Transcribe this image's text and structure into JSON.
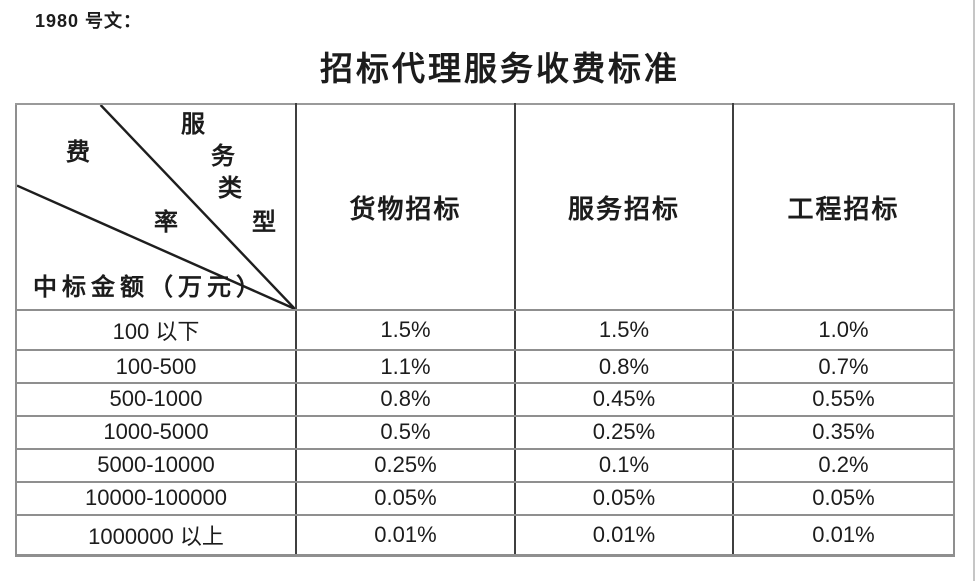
{
  "page": {
    "ref_label": "1980 号文：",
    "title": "招标代理服务收费标准"
  },
  "table": {
    "corner": {
      "fee_rate_label": "费率",
      "service_type_label": "服务类型",
      "fee_rate_chars": [
        "费",
        "率"
      ],
      "service_type_chars": [
        "服",
        "务",
        "类",
        "型"
      ],
      "amount_label": "中标金额（万元）"
    },
    "columns": [
      "货物招标",
      "服务招标",
      "工程招标"
    ],
    "rows": [
      {
        "range": "100 以下",
        "values": [
          "1.5%",
          "1.5%",
          "1.0%"
        ]
      },
      {
        "range": "100-500",
        "values": [
          "1.1%",
          "0.8%",
          "0.7%"
        ]
      },
      {
        "range": "500-1000",
        "values": [
          "0.8%",
          "0.45%",
          "0.55%"
        ]
      },
      {
        "range": "1000-5000",
        "values": [
          "0.5%",
          "0.25%",
          "0.35%"
        ]
      },
      {
        "range": "5000-10000",
        "values": [
          "0.25%",
          "0.1%",
          "0.2%"
        ]
      },
      {
        "range": "10000-100000",
        "values": [
          "0.05%",
          "0.05%",
          "0.05%"
        ]
      },
      {
        "range": "1000000 以上",
        "values": [
          "0.01%",
          "0.01%",
          "0.01%"
        ]
      }
    ]
  },
  "colors": {
    "background": "#ffffff",
    "text": "#1c1c1c",
    "grid_vertical": "#3f3f3f",
    "grid_horizontal": "#8f8f8f",
    "diagonal_line": "#1e1e1e"
  }
}
